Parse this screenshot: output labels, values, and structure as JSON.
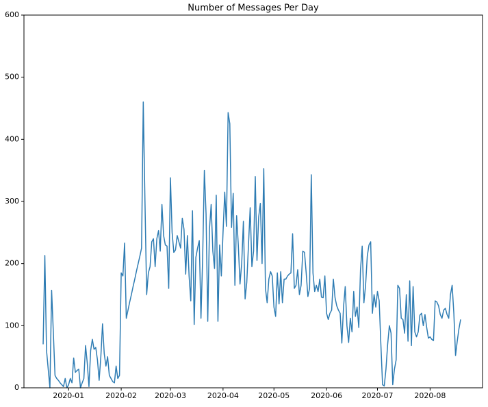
{
  "chart_data": {
    "type": "line",
    "title": "Number of Messages Per Day",
    "color": "#2e7cb3",
    "ylim": [
      0,
      600
    ],
    "yticks": [
      0,
      100,
      200,
      300,
      400,
      500,
      600
    ],
    "xlim": [
      -11.3,
      258.9
    ],
    "xticks": [
      {
        "value": 15,
        "label": "2020-01"
      },
      {
        "value": 46,
        "label": "2020-02"
      },
      {
        "value": 75,
        "label": "2020-03"
      },
      {
        "value": 106,
        "label": "2020-04"
      },
      {
        "value": 136,
        "label": "2020-05"
      },
      {
        "value": 167,
        "label": "2020-06"
      },
      {
        "value": 197,
        "label": "2020-07"
      },
      {
        "value": 228,
        "label": "2020-08"
      }
    ],
    "values": [
      70,
      213,
      60,
      30,
      0,
      157,
      90,
      20,
      15,
      12,
      8,
      5,
      2,
      15,
      0,
      5,
      15,
      8,
      48,
      25,
      28,
      30,
      0,
      8,
      15,
      68,
      40,
      2,
      60,
      78,
      62,
      65,
      45,
      12,
      50,
      103,
      55,
      35,
      50,
      20,
      15,
      10,
      8,
      35,
      15,
      20,
      185,
      180,
      233,
      112,
      125,
      138,
      150,
      163,
      175,
      188,
      200,
      212,
      225,
      460,
      300,
      150,
      185,
      195,
      235,
      240,
      195,
      240,
      253,
      220,
      295,
      245,
      230,
      228,
      160,
      338,
      250,
      218,
      222,
      245,
      235,
      225,
      273,
      255,
      183,
      245,
      180,
      140,
      285,
      102,
      210,
      225,
      237,
      112,
      210,
      350,
      280,
      107,
      255,
      295,
      220,
      192,
      310,
      107,
      230,
      180,
      250,
      315,
      260,
      443,
      425,
      258,
      313,
      165,
      277,
      230,
      167,
      200,
      268,
      143,
      170,
      230,
      290,
      195,
      220,
      340,
      205,
      275,
      297,
      200,
      353,
      160,
      137,
      175,
      187,
      180,
      130,
      115,
      185,
      135,
      187,
      137,
      175,
      175,
      180,
      183,
      185,
      248,
      160,
      165,
      190,
      150,
      165,
      220,
      218,
      185,
      147,
      160,
      343,
      185,
      155,
      165,
      155,
      175,
      146,
      145,
      180,
      120,
      110,
      120,
      125,
      175,
      145,
      132,
      125,
      120,
      72,
      130,
      163,
      100,
      73,
      112,
      90,
      155,
      115,
      130,
      97,
      190,
      228,
      137,
      165,
      212,
      230,
      235,
      120,
      150,
      130,
      155,
      140,
      70,
      5,
      3,
      30,
      70,
      100,
      88,
      5,
      30,
      45,
      165,
      160,
      112,
      110,
      88,
      150,
      75,
      172,
      68,
      163,
      90,
      82,
      90,
      117,
      120,
      100,
      118,
      97,
      80,
      82,
      78,
      76,
      140,
      138,
      132,
      118,
      112,
      125,
      128,
      118,
      112,
      150,
      165,
      120,
      52,
      75,
      95,
      110
    ]
  }
}
